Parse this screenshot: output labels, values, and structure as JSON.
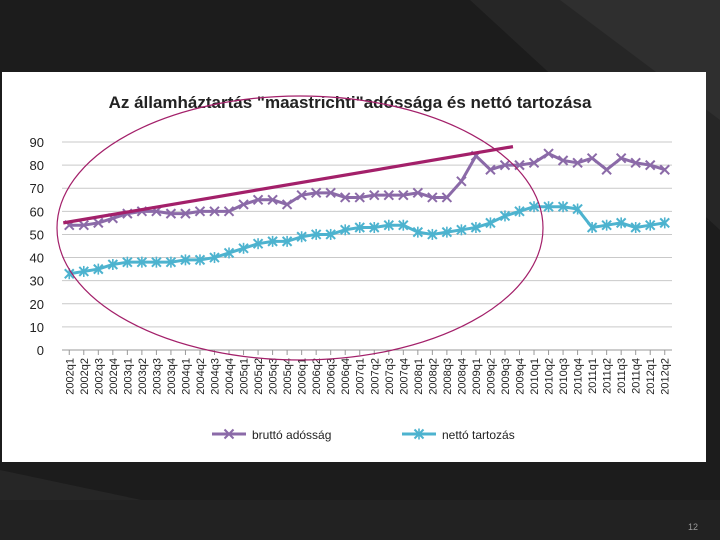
{
  "slide": {
    "page_number": "12"
  },
  "chart_data": {
    "type": "line",
    "title": "Az államháztartás \"maastrichti\"adóssága és nettó tartozása",
    "categories": [
      "2002q1",
      "2002q2",
      "2002q3",
      "2002q4",
      "2003q1",
      "2003q2",
      "2003q3",
      "2003q4",
      "2004q1",
      "2004q2",
      "2004q3",
      "2004q4",
      "2005q1",
      "2005q2",
      "2005q3",
      "2005q4",
      "2006q1",
      "2006q2",
      "2006q3",
      "2006q4",
      "2007q1",
      "2007q2",
      "2007q3",
      "2007q4",
      "2008q1",
      "2008q2",
      "2008q3",
      "2008q4",
      "2009q1",
      "2009q2",
      "2009q3",
      "2009q4",
      "2010q1",
      "2010q2",
      "2010q3",
      "2010q4",
      "2011q1",
      "2011q2",
      "2011q3",
      "2011q4",
      "2012q1",
      "2012q2"
    ],
    "x_tick_labels": [
      "2002q1",
      "2002q2",
      "2002q3",
      "2002q4",
      "2003q1",
      "2003q2",
      "2003q3",
      "2003q4",
      "2004q1",
      "2004q2",
      "2004q3",
      "2004q4",
      "2005q1",
      "2005q2",
      "2005q3",
      "2005q4",
      "2006q1",
      "2006q2",
      "2006q3",
      "2006q4",
      "2007q1",
      "2007q2",
      "2007q3",
      "2007q4",
      "2008q1",
      "2008q2",
      "2008q3",
      "2008q4",
      "2009q1",
      "2009q2",
      "2009q3",
      "2009q4",
      "2010q1",
      "2010q2",
      "2010q3",
      "2010q4",
      "2011q1",
      "2011q2",
      "2011q3",
      "2011q4",
      "2012q1",
      "2012q2"
    ],
    "y_ticks": [
      "0",
      "10",
      "20",
      "30",
      "40",
      "50",
      "60",
      "70",
      "80",
      "90"
    ],
    "ylim": [
      0,
      90
    ],
    "xlabel": "",
    "ylabel": "",
    "grid": true,
    "legend_position": "bottom",
    "series": [
      {
        "name": "bruttó adósság",
        "color": "#8b6aa8",
        "marker": "x",
        "values": [
          54,
          54,
          55,
          57,
          59,
          60,
          60,
          59,
          59,
          60,
          60,
          60,
          63,
          65,
          65,
          63,
          67,
          68,
          68,
          66,
          66,
          67,
          67,
          67,
          68,
          66,
          66,
          73,
          84,
          78,
          80,
          80,
          81,
          85,
          82,
          81,
          83,
          78,
          83,
          81,
          80,
          78
        ]
      },
      {
        "name": "nettó tartozás",
        "color": "#4db3cf",
        "marker": "star",
        "values": [
          33,
          34,
          35,
          37,
          38,
          38,
          38,
          38,
          39,
          39,
          40,
          42,
          44,
          46,
          47,
          47,
          49,
          50,
          50,
          52,
          53,
          53,
          54,
          54,
          51,
          50,
          51,
          52,
          53,
          55,
          58,
          60,
          62,
          62,
          62,
          61,
          53,
          54,
          55,
          53,
          54,
          55
        ]
      }
    ],
    "annotations": [
      {
        "kind": "trend-line",
        "color": "#a3206a",
        "from": {
          "x": "2002q1",
          "y": 55
        },
        "to": {
          "x": "2009q3",
          "y": 88
        }
      },
      {
        "kind": "ellipse",
        "color": "#a3206a",
        "around": "2002q1 – 2009q4"
      }
    ]
  }
}
